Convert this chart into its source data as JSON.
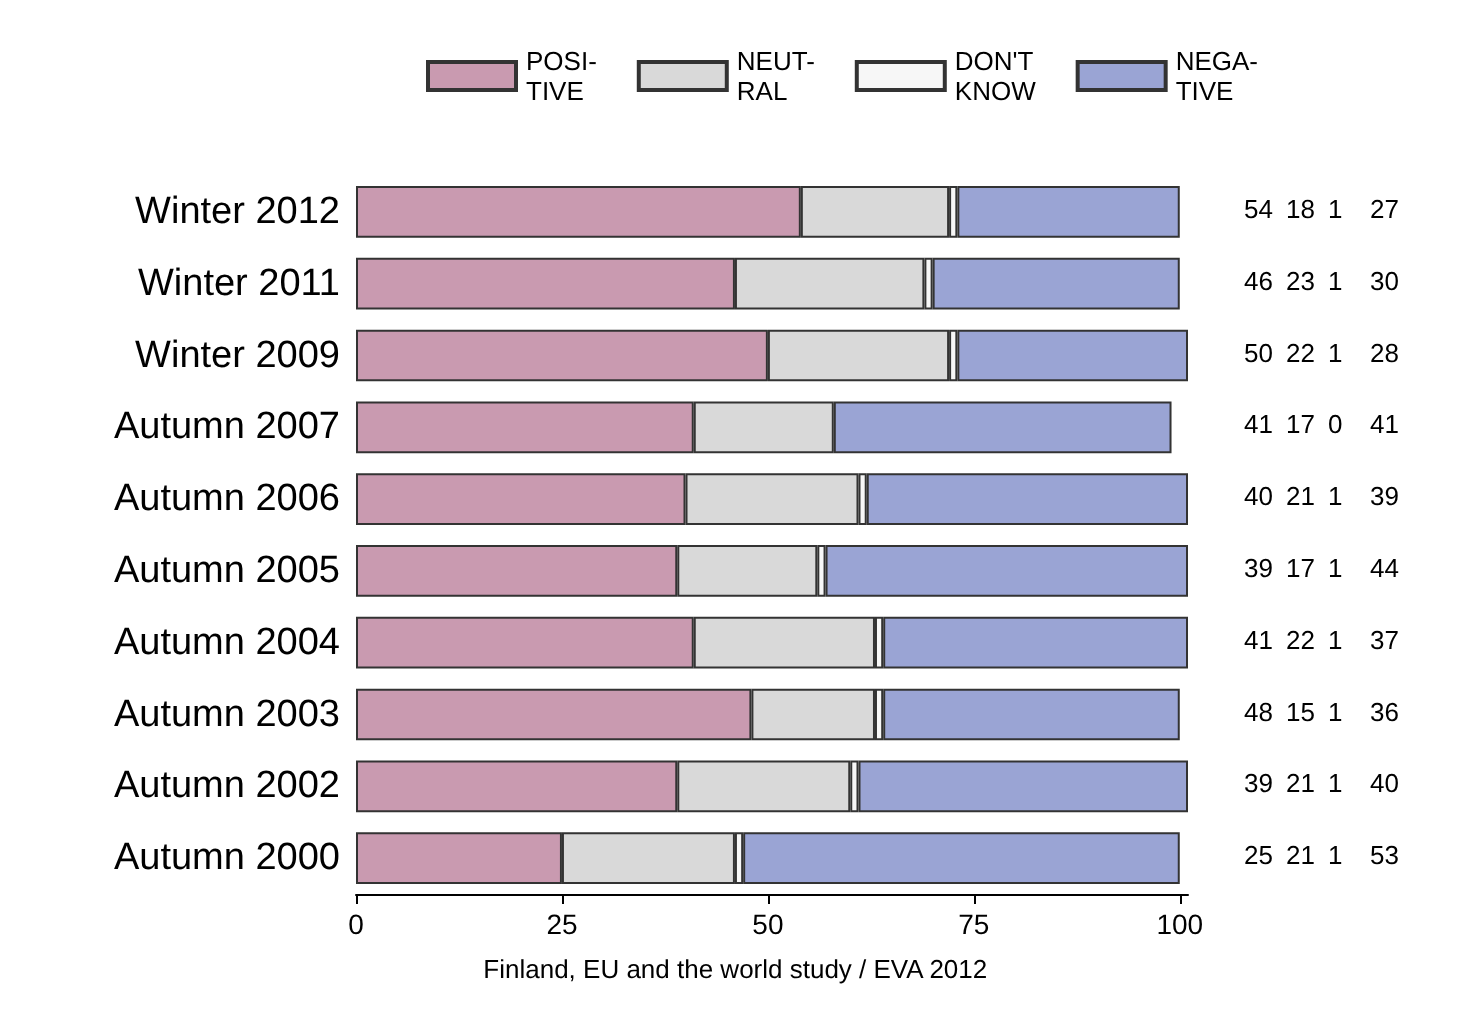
{
  "chart_data": {
    "type": "bar",
    "orientation": "horizontal",
    "stacked": true,
    "categories": [
      "Winter 2012",
      "Winter 2011",
      "Winter 2009",
      "Autumn 2007",
      "Autumn 2006",
      "Autumn 2005",
      "Autumn 2004",
      "Autumn 2003",
      "Autumn 2002",
      "Autumn 2000"
    ],
    "series": [
      {
        "name": "POSI-\nTIVE",
        "color": "#c99ab0",
        "values": [
          54,
          46,
          50,
          41,
          40,
          39,
          41,
          48,
          39,
          25
        ]
      },
      {
        "name": "NEUT-\nRAL",
        "color": "#d9d9d9",
        "values": [
          18,
          23,
          22,
          17,
          21,
          17,
          22,
          15,
          21,
          21
        ]
      },
      {
        "name": "DON'T\nKNOW",
        "color": "#f7f7f7",
        "values": [
          1,
          1,
          1,
          0,
          1,
          1,
          1,
          1,
          1,
          1
        ]
      },
      {
        "name": "NEGA-\nTIVE",
        "color": "#9aa4d4",
        "values": [
          27,
          30,
          28,
          41,
          39,
          44,
          37,
          36,
          40,
          53
        ]
      }
    ],
    "xlim": [
      0,
      101
    ],
    "xticks": [
      0,
      25,
      50,
      75,
      100
    ],
    "grid": false,
    "legend": "top",
    "data_labels": true,
    "annotations": [
      "Finland, EU and the world study / EVA 2012"
    ]
  }
}
